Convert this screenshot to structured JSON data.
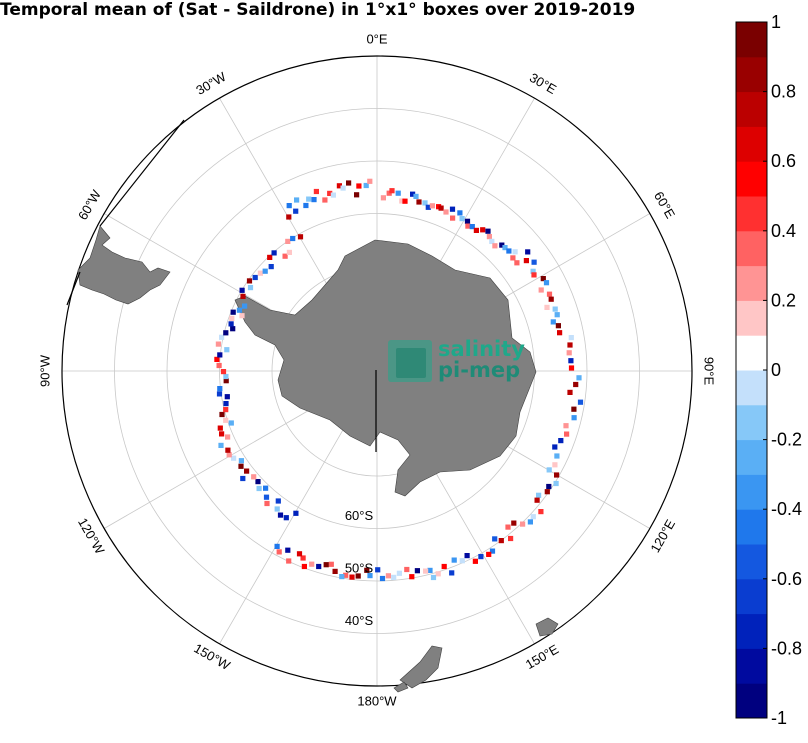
{
  "title": "Temporal mean of (Sat - Saildrone) in 1°x1° boxes over 2019-2019",
  "logo": {
    "line1": "salinity",
    "line2": "pi-mep"
  },
  "longitude_labels": [
    {
      "lon": 0,
      "text": "0°E"
    },
    {
      "lon": 30,
      "text": "30°E"
    },
    {
      "lon": 60,
      "text": "60°E"
    },
    {
      "lon": 90,
      "text": "90°E"
    },
    {
      "lon": 120,
      "text": "120°E"
    },
    {
      "lon": 150,
      "text": "150°E"
    },
    {
      "lon": 180,
      "text": "180°W"
    },
    {
      "lon": -150,
      "text": "150°W"
    },
    {
      "lon": -120,
      "text": "120°W"
    },
    {
      "lon": -90,
      "text": "90°W"
    },
    {
      "lon": -60,
      "text": "60°W"
    },
    {
      "lon": -30,
      "text": "30°W"
    }
  ],
  "latitude_labels": [
    {
      "lat": -60,
      "text": "60°S"
    },
    {
      "lat": -50,
      "text": "50°S"
    },
    {
      "lat": -40,
      "text": "40°S"
    }
  ],
  "colorbar": {
    "min": -1,
    "max": 1,
    "levels": 20,
    "tick_labels": [
      "1",
      "0.8",
      "0.6",
      "0.4",
      "0.2",
      "0",
      "-0.2",
      "-0.4",
      "-0.6",
      "-0.8",
      "-1"
    ],
    "colors": [
      "#00007f",
      "#000a9f",
      "#0022bb",
      "#0a3dd0",
      "#1458e0",
      "#1f78ec",
      "#3a96f2",
      "#5aaff5",
      "#86c8f8",
      "#c4e0fb",
      "#ffffff",
      "#ffc6c6",
      "#ff9494",
      "#ff6262",
      "#ff3030",
      "#ff0000",
      "#dd0000",
      "#bb0000",
      "#990000",
      "#7a0000"
    ]
  }
}
